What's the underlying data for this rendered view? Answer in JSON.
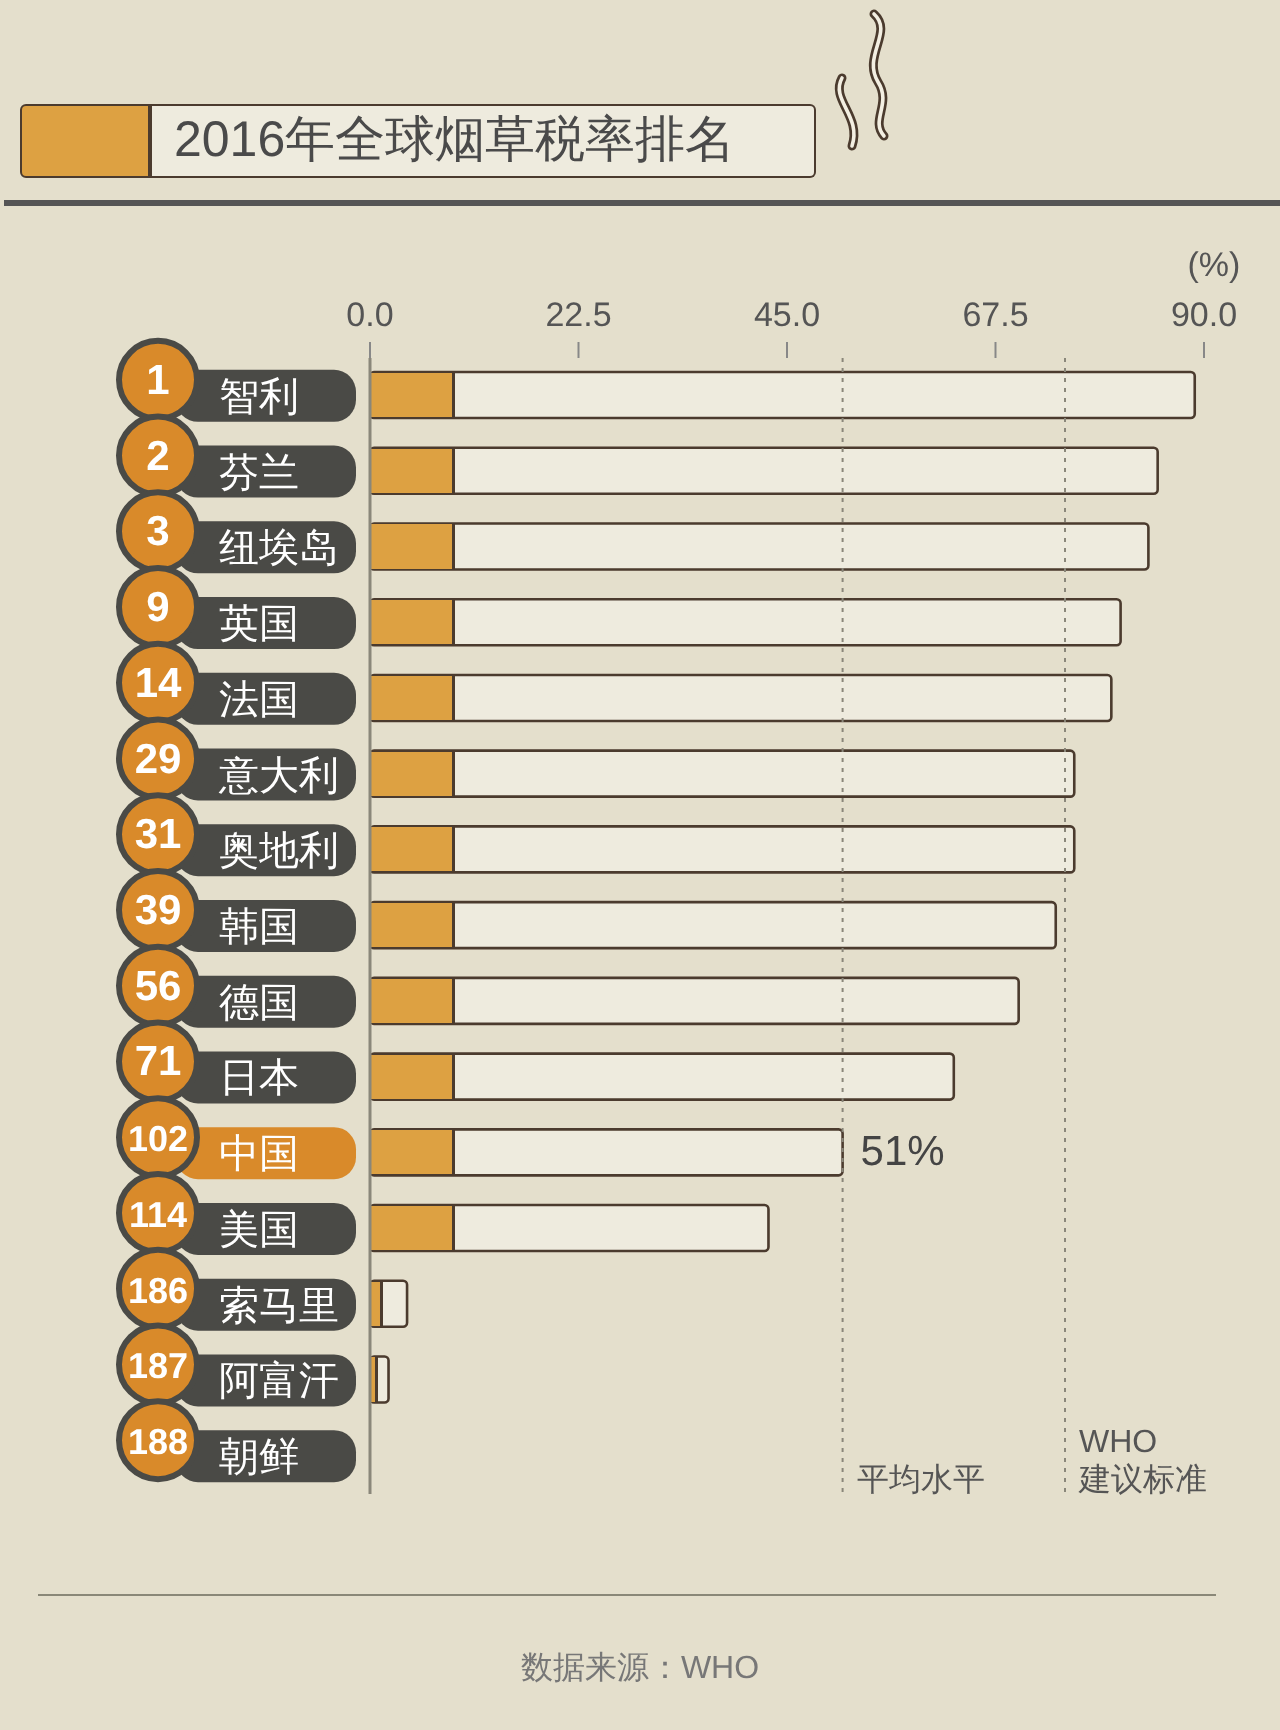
{
  "chart_data": {
    "type": "bar",
    "orientation": "horizontal",
    "title": "2016年全球烟草税率排名",
    "xlabel": "(%)",
    "categories": [
      "1 智利",
      "2 芬兰",
      "3 纽埃岛",
      "9 英国",
      "14 法国",
      "29 意大利",
      "31 奥地利",
      "39 韩国",
      "56 德国",
      "71 日本",
      "102 中国",
      "114 美国",
      "186 索马里",
      "187 阿富汗",
      "188 朝鲜"
    ],
    "values": [
      89,
      85,
      84,
      81,
      80,
      76,
      76,
      74,
      70,
      63,
      51,
      43,
      4,
      2,
      0
    ],
    "value_labels": [
      null,
      null,
      null,
      null,
      null,
      null,
      null,
      null,
      null,
      null,
      "51%",
      null,
      null,
      null,
      null
    ],
    "color": "#eeebde",
    "xlim": [
      0,
      90
    ],
    "xticks": [
      {
        "value": 0,
        "label": "0.0"
      },
      {
        "value": 22.5,
        "label": "22.5"
      },
      {
        "value": 45,
        "label": "45.0"
      },
      {
        "value": 67.5,
        "label": "67.5"
      },
      {
        "value": 90,
        "label": "90.0"
      }
    ],
    "ref_lines": [
      {
        "axis": "x",
        "value": 51,
        "label": "平均水平",
        "color": "#8a877a",
        "line_style": "dotted"
      },
      {
        "axis": "x",
        "value": 75,
        "label": "WHO\n建议标准",
        "color": "#8a877a",
        "line_style": "dotted"
      }
    ],
    "annotations": [
      "数据来源：WHO"
    ]
  }
}
